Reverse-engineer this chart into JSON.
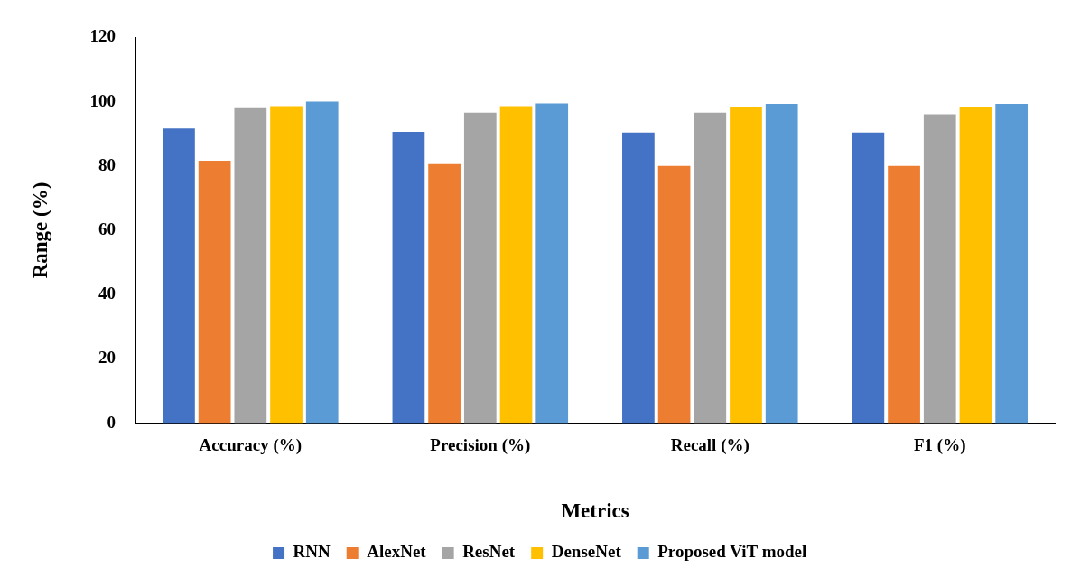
{
  "chart_data": {
    "type": "bar",
    "xlabel": "Metrics",
    "ylabel": "Range (%)",
    "categories": [
      "Accuracy (%)",
      "Precision (%)",
      "Recall (%)",
      "F1 (%)"
    ],
    "series": [
      {
        "name": "RNN",
        "color": "#4472c4",
        "values": [
          91.7,
          90.6,
          90.4,
          90.4
        ]
      },
      {
        "name": "AlexNet",
        "color": "#ed7d31",
        "values": [
          81.6,
          80.6,
          80.0,
          80.0
        ]
      },
      {
        "name": "ResNet",
        "color": "#a5a5a5",
        "values": [
          98.0,
          96.6,
          96.6,
          96.1
        ]
      },
      {
        "name": "DenseNet",
        "color": "#ffc000",
        "values": [
          98.6,
          98.6,
          98.3,
          98.3
        ]
      },
      {
        "name": "Proposed ViT model",
        "color": "#5b9bd5",
        "values": [
          100.0,
          99.5,
          99.3,
          99.3
        ]
      }
    ],
    "ylim": [
      0,
      120
    ],
    "yticks": [
      0,
      20,
      40,
      60,
      80,
      100,
      120
    ],
    "grid": false,
    "legend": "bottom"
  }
}
